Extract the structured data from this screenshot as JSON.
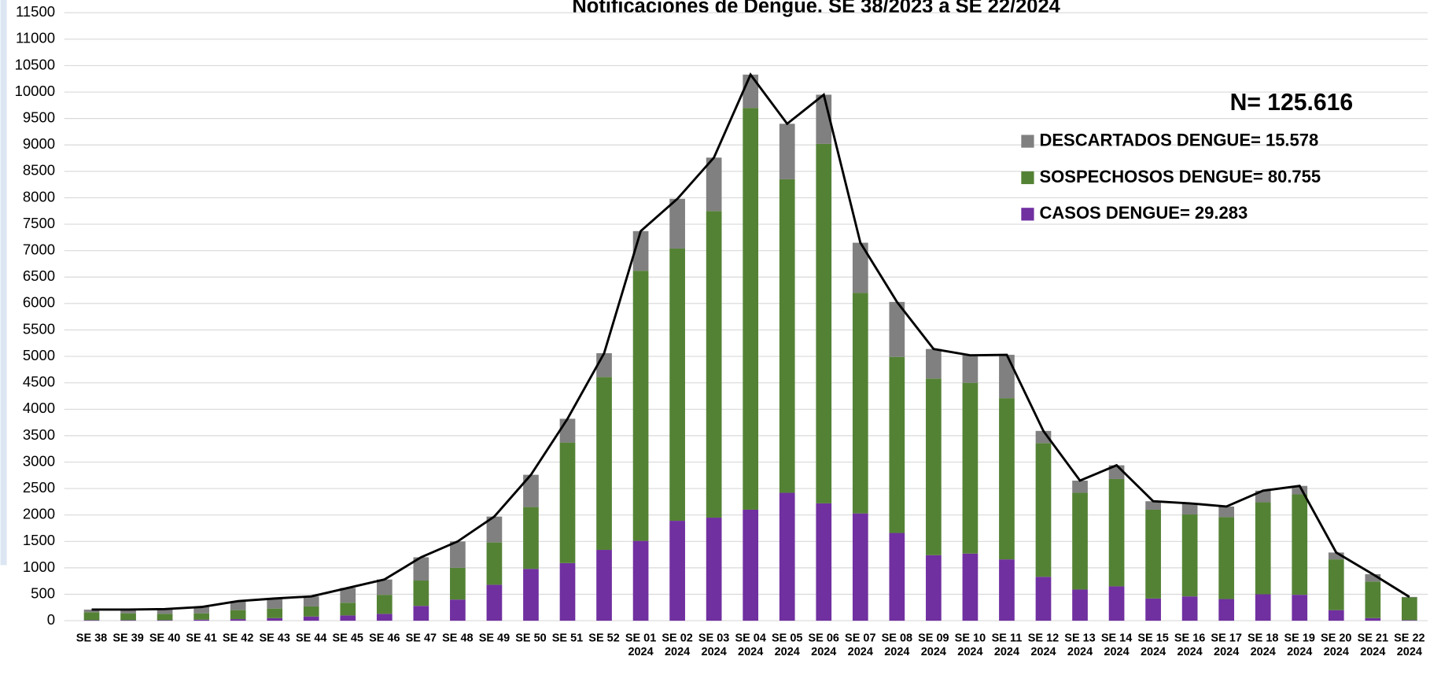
{
  "chart_data": {
    "type": "stacked-bar-line",
    "title": "Notificaciones de Dengue. SE  38/2023 a SE  22/2024",
    "annotation": "N= 125.616",
    "categories": [
      "SE 38",
      "SE 39",
      "SE 40",
      "SE 41",
      "SE 42",
      "SE 43",
      "SE 44",
      "SE 45",
      "SE 46",
      "SE 47",
      "SE 48",
      "SE 49",
      "SE 50",
      "SE 51",
      "SE 52",
      "SE 01 2024",
      "SE 02 2024",
      "SE 03 2024",
      "SE 04 2024",
      "SE 05 2024",
      "SE 06 2024",
      "SE 07 2024",
      "SE 08 2024",
      "SE 09 2024",
      "SE 10 2024",
      "SE 11 2024",
      "SE 12 2024",
      "SE 13 2024",
      "SE 14 2024",
      "SE 15 2024",
      "SE 16 2024",
      "SE 17 2024",
      "SE 18 2024",
      "SE 19 2024",
      "SE 20 2024",
      "SE 21 2024",
      "SE 22 2024"
    ],
    "series": [
      {
        "name": "CASOS DENGUE= 29.283",
        "color": "#7030a0",
        "values": [
          10,
          10,
          10,
          20,
          30,
          50,
          80,
          100,
          130,
          280,
          400,
          680,
          980,
          1090,
          1340,
          1510,
          1890,
          1950,
          2100,
          2420,
          2220,
          2030,
          1660,
          1240,
          1270,
          1160,
          830,
          590,
          650,
          420,
          460,
          410,
          500,
          490,
          200,
          50,
          10
        ]
      },
      {
        "name": "SOSPECHOSOS DENGUE= 80.755",
        "color": "#548235",
        "values": [
          150,
          130,
          120,
          120,
          170,
          180,
          190,
          240,
          360,
          480,
          600,
          800,
          1170,
          2280,
          3270,
          5110,
          5150,
          5800,
          7600,
          5930,
          6800,
          4170,
          3330,
          3340,
          3230,
          3050,
          2530,
          1830,
          2030,
          1680,
          1550,
          1550,
          1740,
          1900,
          960,
          690,
          430
        ]
      },
      {
        "name": "DESCARTADOS DENGUE= 15.578",
        "color": "#808080",
        "values": [
          50,
          70,
          90,
          120,
          170,
          190,
          190,
          280,
          290,
          440,
          500,
          490,
          610,
          450,
          450,
          750,
          940,
          1010,
          630,
          1050,
          930,
          950,
          1040,
          560,
          520,
          820,
          230,
          230,
          260,
          160,
          210,
          200,
          220,
          160,
          130,
          140,
          10
        ]
      }
    ],
    "line_color": "#000000",
    "ylim": [
      0,
      11500
    ],
    "yticks": [
      0,
      500,
      1000,
      1500,
      2000,
      2500,
      3000,
      3500,
      4000,
      4500,
      5000,
      5500,
      6000,
      6500,
      7000,
      7500,
      8000,
      8500,
      9000,
      9500,
      10000,
      10500,
      11000,
      11500
    ],
    "grid": true
  }
}
